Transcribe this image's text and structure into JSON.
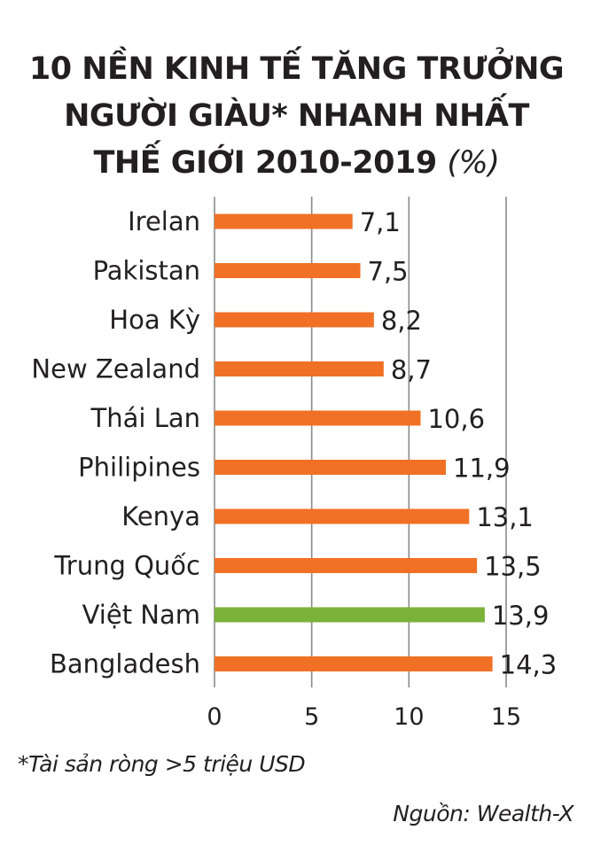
{
  "chart_data": {
    "type": "bar",
    "orientation": "horizontal",
    "title": "10 NỀN KINH TẾ TĂNG TRƯỞNG NGƯỜI GIÀU* NHANH NHẤT THẾ GIỚI 2010-2019",
    "title_lines": [
      "10 NỀN KINH TẾ TĂNG TRƯỞNG",
      "NGƯỜI GIÀU* NHANH NHẤT",
      "THẾ GIỚI 2010-2019"
    ],
    "title_unit": "(%)",
    "categories": [
      "Irelan",
      "Pakistan",
      "Hoa Kỳ",
      "New Zealand",
      "Thái Lan",
      "Philipines",
      "Kenya",
      "Trung Quốc",
      "Việt Nam",
      "Bangladesh"
    ],
    "values": [
      7.1,
      7.5,
      8.2,
      8.7,
      10.6,
      11.9,
      13.1,
      13.5,
      13.9,
      14.3
    ],
    "value_labels": [
      "7,1",
      "7,5",
      "8,2",
      "8,7",
      "10,6",
      "11,9",
      "13,1",
      "13,5",
      "13,9",
      "14,3"
    ],
    "highlight_category": "Việt Nam",
    "xlabel": "",
    "ylabel": "",
    "xlim": [
      0,
      15
    ],
    "xticks": [
      0,
      5,
      10,
      15
    ],
    "xtick_labels": [
      "0",
      "5",
      "10",
      "15"
    ],
    "grid": true,
    "legend": "none",
    "colors": {
      "default_bar": "#f07125",
      "highlight_bar": "#7ab23a",
      "grid": "#8a8a8a",
      "text": "#231f20"
    }
  },
  "footnote": "*Tài sản ròng >5 triệu USD",
  "source": "Nguồn: Wealth-X"
}
